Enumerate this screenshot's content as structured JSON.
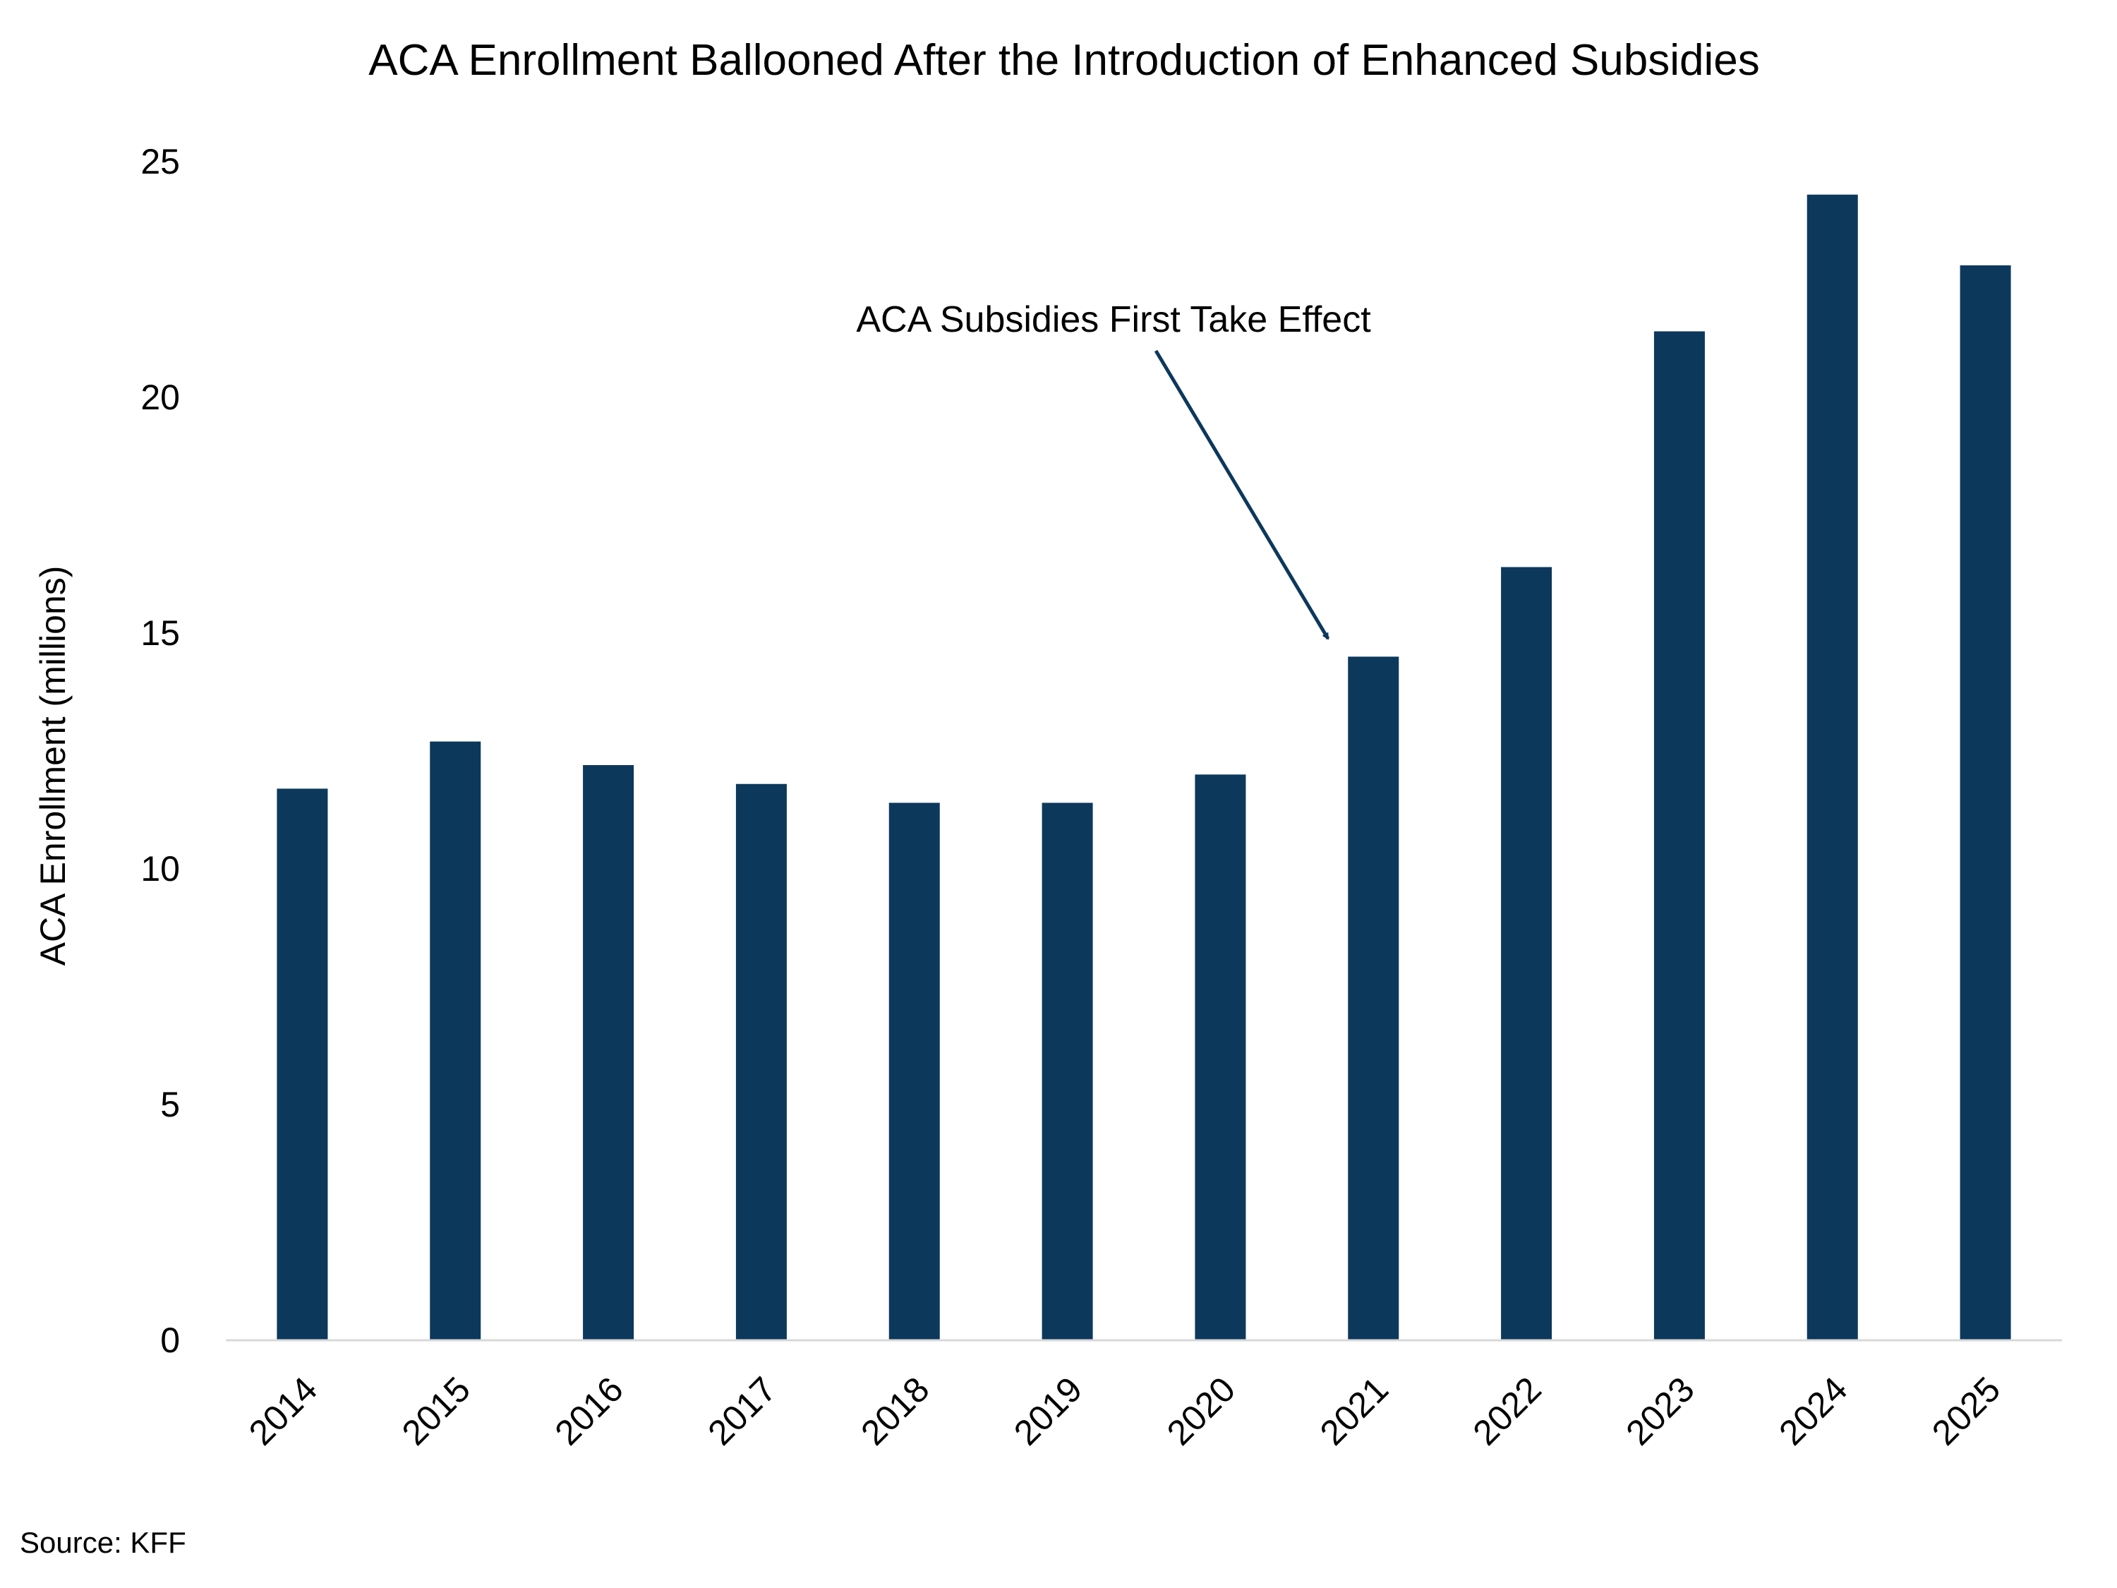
{
  "colors": {
    "bar": "#0c385c",
    "axis": "#d9d9d9",
    "arrow": "#0c385c"
  },
  "chart_data": {
    "type": "bar",
    "title": "ACA Enrollment Ballooned After the Introduction of Enhanced Subsidies",
    "xlabel": "",
    "ylabel": "ACA Enrollment (millions)",
    "ylim": [
      0,
      25
    ],
    "yticks": [
      0,
      5,
      10,
      15,
      20,
      25
    ],
    "grid": false,
    "legend": "none",
    "categories": [
      "2014",
      "2015",
      "2016",
      "2017",
      "2018",
      "2019",
      "2020",
      "2021",
      "2022",
      "2023",
      "2024",
      "2025"
    ],
    "values": [
      11.7,
      12.7,
      12.2,
      11.8,
      11.4,
      11.4,
      12.0,
      14.5,
      16.4,
      21.4,
      24.3,
      22.8
    ],
    "annotations": [
      {
        "text": "ACA Subsidies First Take Effect",
        "points_to": "2021"
      }
    ],
    "source": "Source: KFF"
  }
}
